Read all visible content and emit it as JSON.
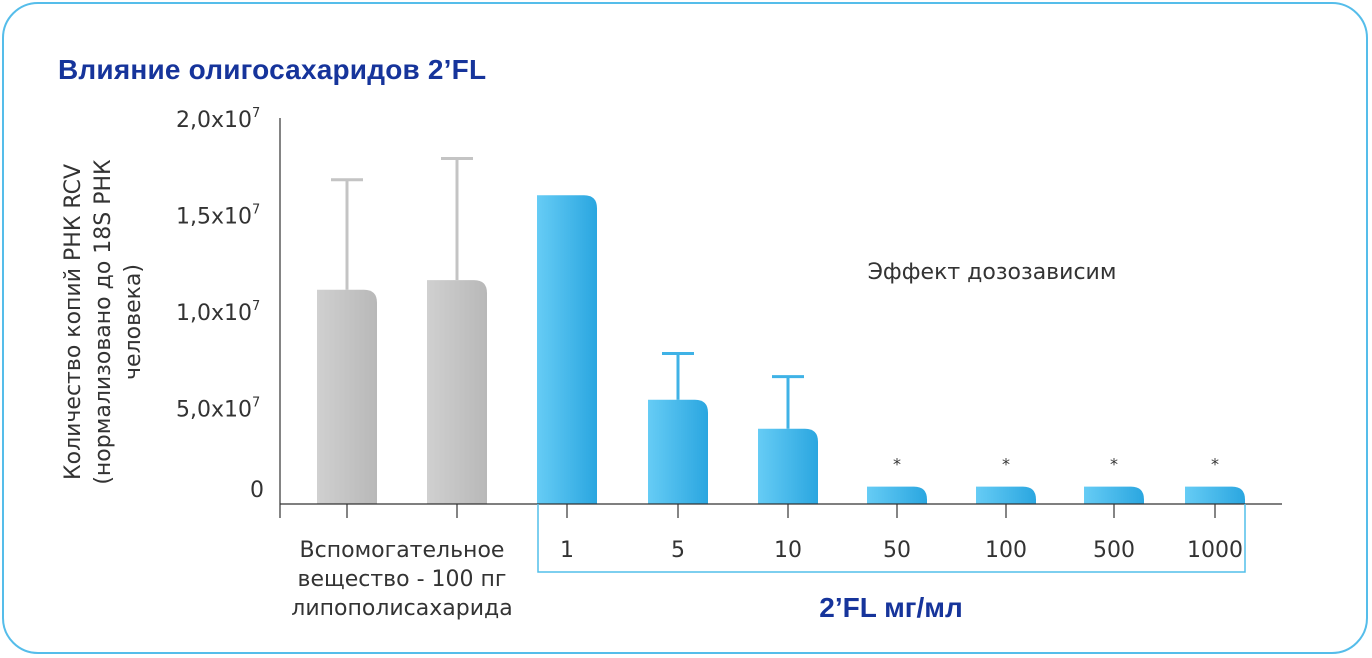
{
  "chart_data": {
    "type": "bar",
    "title": "Влияние олигосахаридов 2’FL",
    "ylabel_lines": [
      "Количество копий РНК RCV",
      "(нормализовано до 18S РНК",
      "человека)"
    ],
    "y_ticks": [
      {
        "value": 0,
        "base": "0",
        "exp": ""
      },
      {
        "value": 5000000,
        "base": "5,0x10",
        "exp": "7"
      },
      {
        "value": 10000000,
        "base": "1,0x10",
        "exp": "7"
      },
      {
        "value": 15000000,
        "base": "1,5x10",
        "exp": "7"
      },
      {
        "value": 20000000,
        "base": "2,0x10",
        "exp": "7"
      }
    ],
    "ylim": [
      0,
      20000000
    ],
    "group_label": "2’FL мг/мл",
    "control_label_lines": [
      "Вспомогательное",
      "вещество - 100 пг",
      "липополисахарида"
    ],
    "annotation": "Эффект дозозависим",
    "significance_marker": "*",
    "categories": [
      "Вспомогательное вещество - 100 пг липополисахарида",
      "Вспомогательное вещество - 100 пг липополисахарида",
      "1",
      "5",
      "10",
      "50",
      "100",
      "500",
      "1000"
    ],
    "bars": [
      {
        "label": "",
        "value": 11100000,
        "error_upper": 16800000,
        "color": "gray",
        "sig": false
      },
      {
        "label": "",
        "value": 11600000,
        "error_upper": 17900000,
        "color": "gray",
        "sig": false
      },
      {
        "label": "1",
        "value": 16000000,
        "error_upper": null,
        "color": "blue",
        "sig": false
      },
      {
        "label": "5",
        "value": 5400000,
        "error_upper": 7800000,
        "color": "blue",
        "sig": false
      },
      {
        "label": "10",
        "value": 3900000,
        "error_upper": 6600000,
        "color": "blue",
        "sig": false
      },
      {
        "label": "50",
        "value": 900000,
        "error_upper": null,
        "color": "blue",
        "sig": true
      },
      {
        "label": "100",
        "value": 900000,
        "error_upper": null,
        "color": "blue",
        "sig": true
      },
      {
        "label": "500",
        "value": 900000,
        "error_upper": null,
        "color": "blue",
        "sig": true
      },
      {
        "label": "1000",
        "value": 900000,
        "error_upper": null,
        "color": "blue",
        "sig": true
      }
    ],
    "colors": {
      "gray_light": "#d0d0d0",
      "gray_dark": "#b8b8b8",
      "blue_light": "#66ccf5",
      "blue_dark": "#2aa6e0",
      "error_gray": "#c4c4c4",
      "error_blue": "#3fb2e6",
      "axis": "#333333",
      "group_box": "#52bfea",
      "title": "#16349b"
    }
  }
}
